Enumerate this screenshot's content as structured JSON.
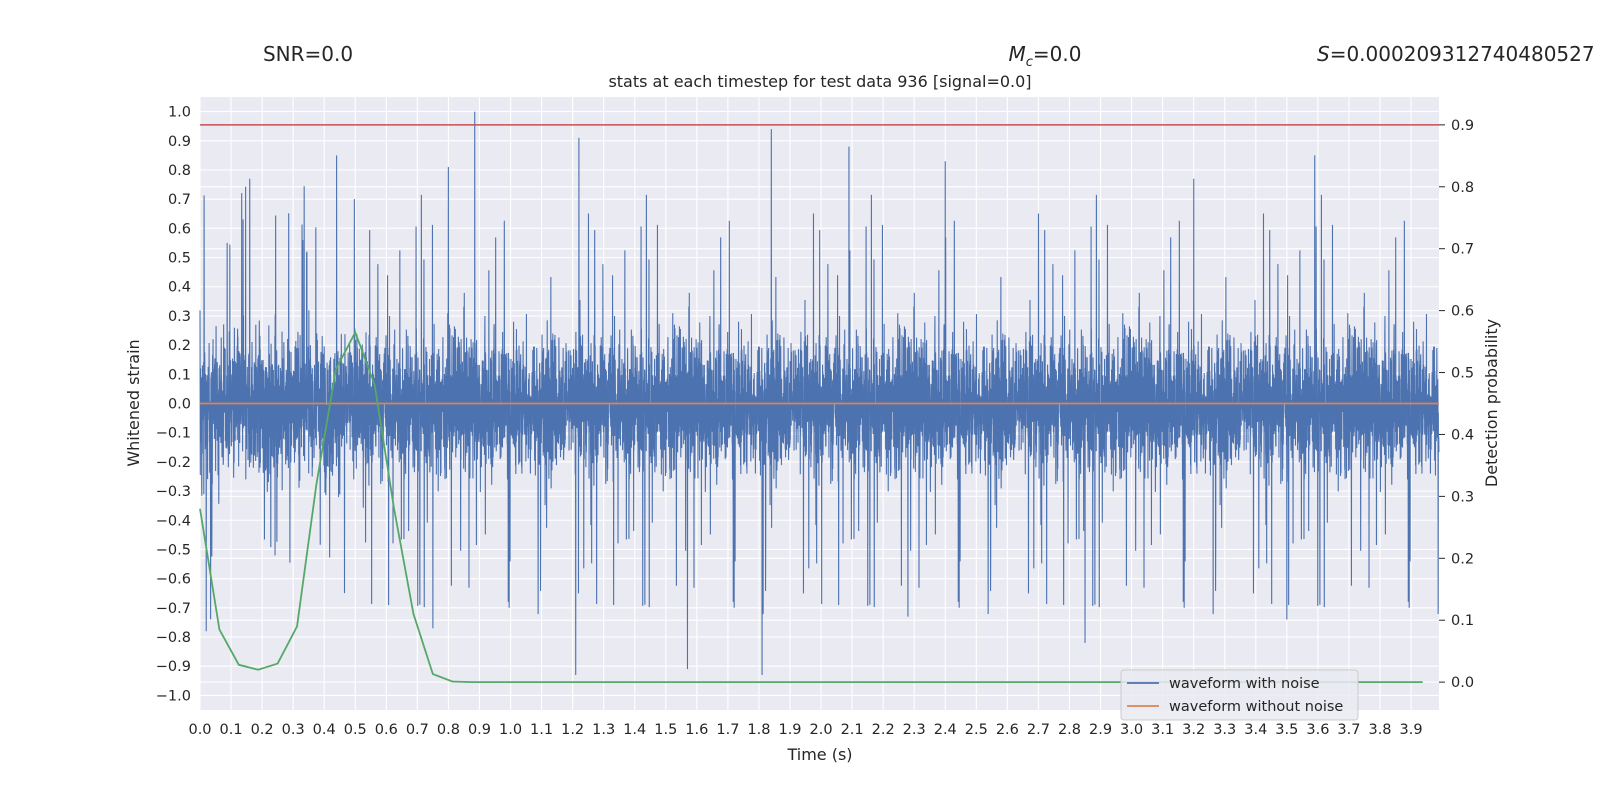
{
  "header": {
    "snr": "SNR=0.0",
    "mc_symbol": "M",
    "mc_subscript": "c",
    "mc_value": "=0.0",
    "s_symbol": "S",
    "s_value": "=0.000209312740480527"
  },
  "chart_data": {
    "type": "line",
    "title": "stats at each timestep for test data 936 [signal=0.0]",
    "xlabel": "Time (s)",
    "ylabel": "Whitened strain",
    "y2label": "Detection probability",
    "xlim": [
      0.0,
      3.99
    ],
    "ylim": [
      -1.05,
      1.05
    ],
    "y2lim": [
      -0.045,
      0.945
    ],
    "x_ticks": [
      "0.0",
      "0.1",
      "0.2",
      "0.3",
      "0.4",
      "0.5",
      "0.6",
      "0.7",
      "0.8",
      "0.9",
      "1.0",
      "1.1",
      "1.2",
      "1.3",
      "1.4",
      "1.5",
      "1.6",
      "1.7",
      "1.8",
      "1.9",
      "2.0",
      "2.1",
      "2.2",
      "2.3",
      "2.4",
      "2.5",
      "2.6",
      "2.7",
      "2.8",
      "2.9",
      "3.0",
      "3.1",
      "3.2",
      "3.3",
      "3.4",
      "3.5",
      "3.6",
      "3.7",
      "3.8",
      "3.9"
    ],
    "y_ticks": [
      "1.0",
      "0.9",
      "0.8",
      "0.7",
      "0.6",
      "0.5",
      "0.4",
      "0.3",
      "0.2",
      "0.1",
      "0.0",
      "−0.1",
      "−0.2",
      "−0.3",
      "−0.4",
      "−0.5",
      "−0.6",
      "−0.7",
      "−0.8",
      "−0.9",
      "−1.0"
    ],
    "y2_ticks": [
      "0.9",
      "0.8",
      "0.7",
      "0.6",
      "0.5",
      "0.4",
      "0.3",
      "0.2",
      "0.1",
      "0.0"
    ],
    "threshold_line": {
      "y2": 0.9,
      "color": "#c44e52"
    },
    "series": [
      {
        "name": "waveform with noise",
        "color": "#4c72b0",
        "sample_rate_hz": 2048,
        "approx_range": [
          -0.94,
          1.0
        ],
        "spikes": [
          {
            "x": 0.885,
            "y": 1.0
          },
          {
            "x": 1.22,
            "y": 0.91
          },
          {
            "x": 1.84,
            "y": 0.94
          },
          {
            "x": 2.09,
            "y": 0.88
          },
          {
            "x": 3.59,
            "y": 0.85
          },
          {
            "x": 0.16,
            "y": 0.77
          },
          {
            "x": 0.44,
            "y": 0.85
          },
          {
            "x": 0.8,
            "y": 0.81
          },
          {
            "x": 2.4,
            "y": 0.83
          },
          {
            "x": 3.2,
            "y": 0.77
          },
          {
            "x": 1.21,
            "y": -0.93
          },
          {
            "x": 1.57,
            "y": -0.91
          },
          {
            "x": 1.81,
            "y": -0.93
          },
          {
            "x": 2.85,
            "y": -0.82
          },
          {
            "x": 2.28,
            "y": -0.73
          },
          {
            "x": 3.5,
            "y": -0.74
          },
          {
            "x": 0.02,
            "y": -0.78
          },
          {
            "x": 0.75,
            "y": -0.77
          }
        ]
      },
      {
        "name": "waveform without noise",
        "color": "#dd8452",
        "x": [
          0.0,
          3.99
        ],
        "y": [
          0.0,
          0.0
        ]
      },
      {
        "name": "detection probability",
        "axis": "right",
        "color": "#55a868",
        "x": [
          0.0,
          0.0625,
          0.125,
          0.1875,
          0.25,
          0.3125,
          0.375,
          0.4375,
          0.5,
          0.5625,
          0.625,
          0.6875,
          0.75,
          0.8125,
          0.875,
          1.0,
          2.0,
          3.0,
          3.9375
        ],
        "y": [
          0.28,
          0.085,
          0.028,
          0.02,
          0.03,
          0.09,
          0.32,
          0.505,
          0.565,
          0.48,
          0.28,
          0.11,
          0.013,
          0.001,
          0.0,
          0.0,
          0.0,
          0.0,
          0.0
        ]
      }
    ],
    "legend": {
      "position": "bottom-right",
      "entries": [
        "waveform with noise",
        "waveform without noise"
      ]
    }
  }
}
